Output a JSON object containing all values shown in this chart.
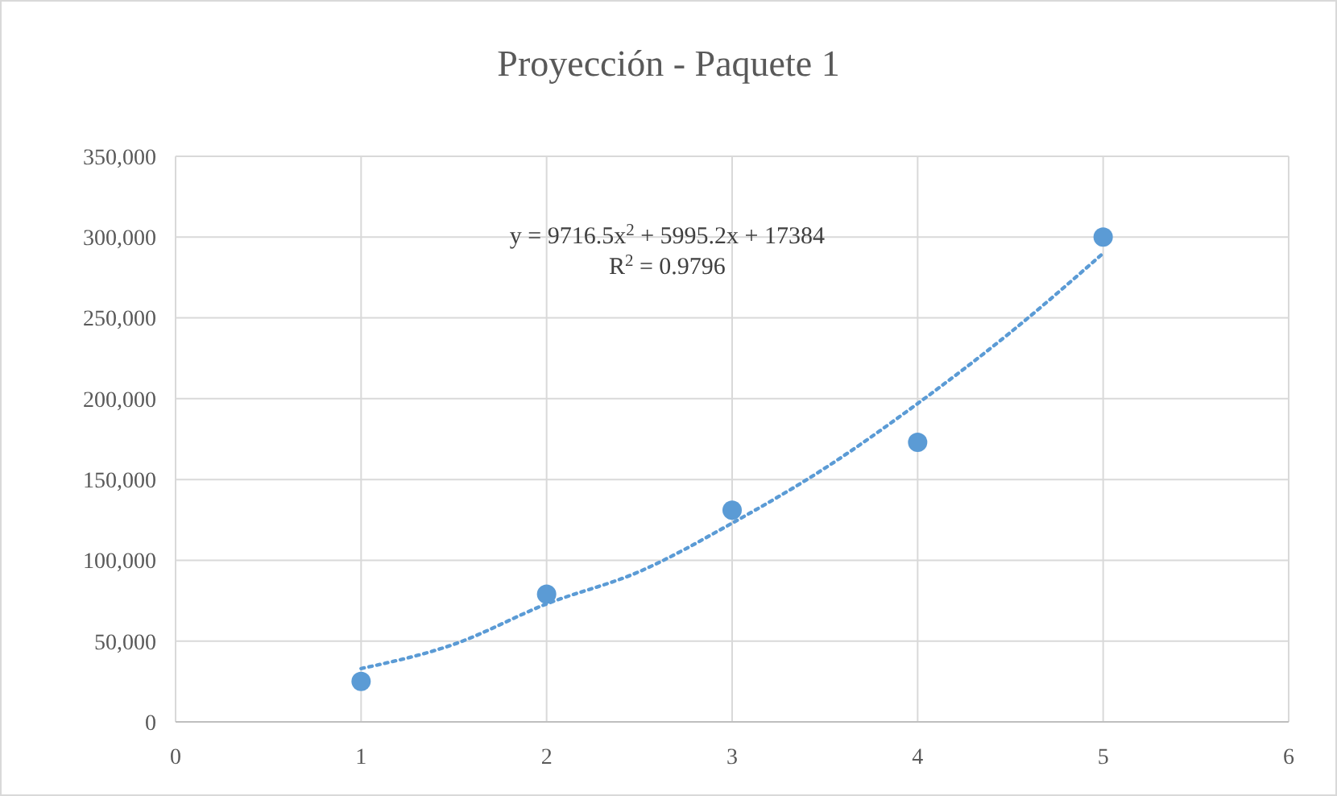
{
  "chart_data": {
    "type": "scatter",
    "title": "Proyección - Paquete 1",
    "series": [
      {
        "color": "#5b9bd5",
        "marker": "circle",
        "x": [
          1,
          2,
          3,
          4,
          5
        ],
        "values": [
          25000,
          79000,
          131000,
          173000,
          300000
        ]
      },
      {
        "type": "line",
        "color": "#5b9bd5",
        "line_style": "dotted",
        "x": [
          1,
          1.5,
          2,
          2.5,
          3,
          3.5,
          4,
          4.5,
          5
        ],
        "values": [
          33000,
          48000,
          73000,
          93000,
          123000,
          157000,
          197000,
          241000,
          290000
        ]
      }
    ],
    "xlim": [
      0,
      6
    ],
    "xticks": [
      0,
      1,
      2,
      3,
      4,
      5,
      6
    ],
    "ylim": [
      0,
      350000
    ],
    "yticks": [
      {
        "value": 0,
        "label": "0"
      },
      {
        "value": 50000,
        "label": "50,000"
      },
      {
        "value": 100000,
        "label": "100,000"
      },
      {
        "value": 150000,
        "label": "150,000"
      },
      {
        "value": 200000,
        "label": "200,000"
      },
      {
        "value": 250000,
        "label": "250,000"
      },
      {
        "value": 300000,
        "label": "300,000"
      },
      {
        "value": 350000,
        "label": "350,000"
      }
    ],
    "grid": true,
    "annotations": [
      "y = 9716.5x$^{2}$ + 5995.2x + 17384",
      "R$^{2}$ = 0.9796"
    ]
  }
}
